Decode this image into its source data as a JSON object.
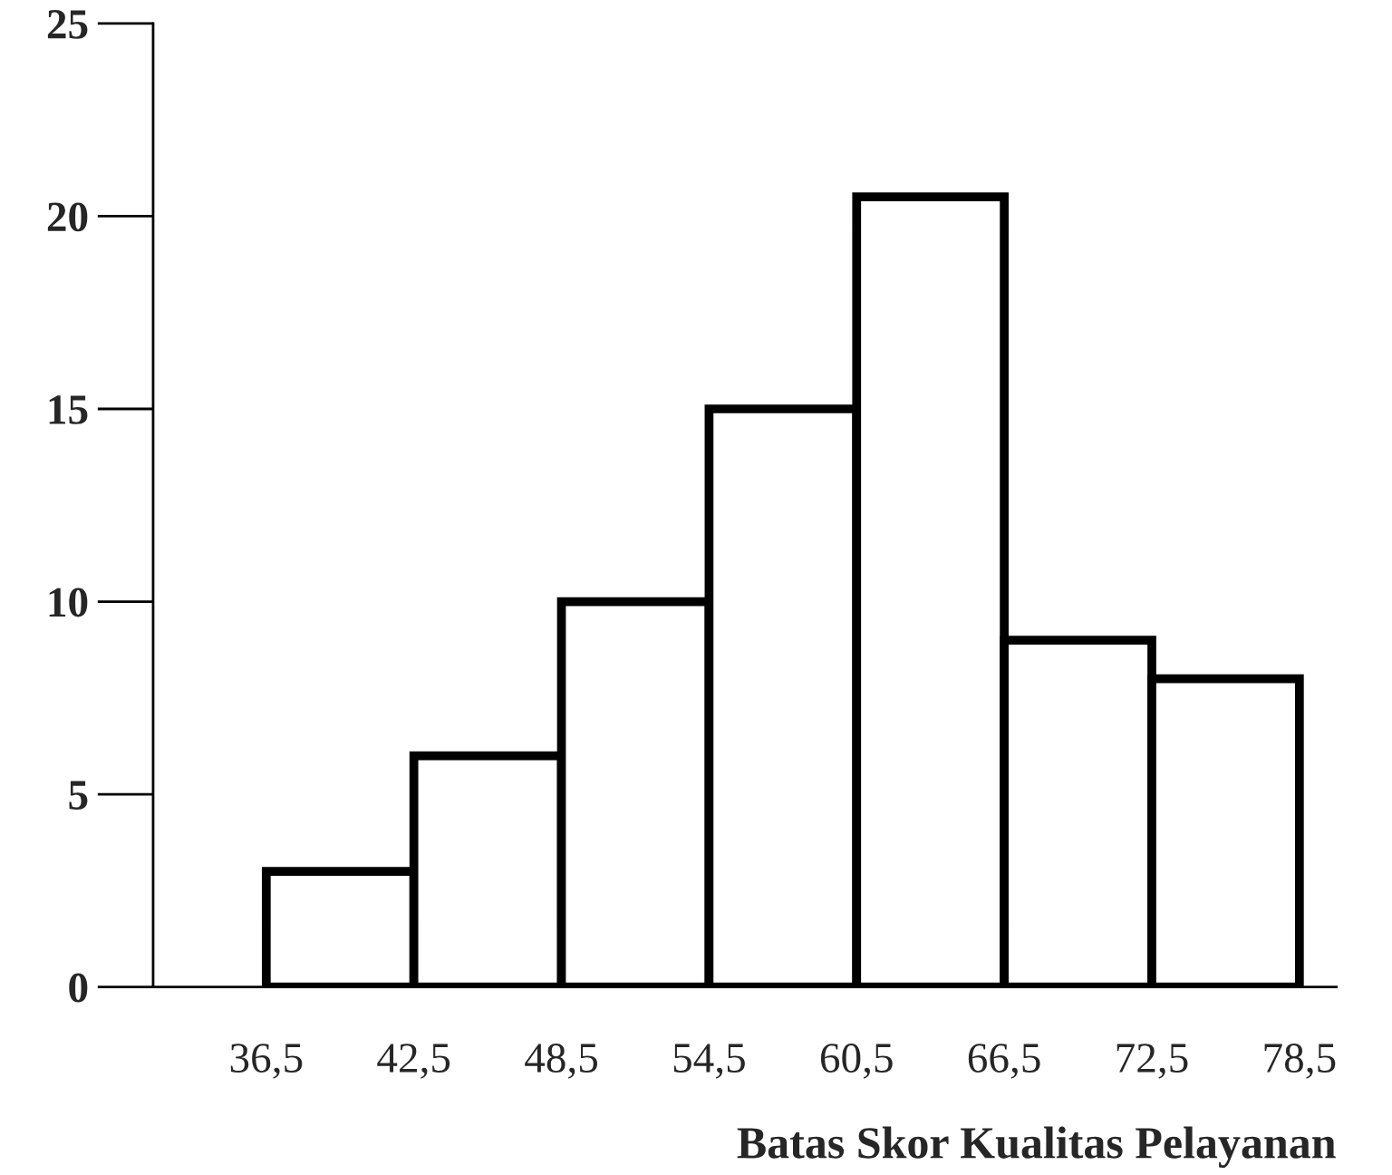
{
  "chart_data": {
    "type": "histogram",
    "xlabel": "Batas Skor Kualitas Pelayanan",
    "bins": [
      36.5,
      42.5,
      48.5,
      54.5,
      60.5,
      66.5,
      72.5,
      78.5
    ],
    "values": [
      3,
      6,
      10,
      15,
      20.5,
      9,
      8
    ],
    "color": "#ffffff",
    "xlim": [
      31.9,
      80
    ],
    "xticks": [
      {
        "value": 36.5,
        "label": "36,5"
      },
      {
        "value": 42.5,
        "label": "42,5"
      },
      {
        "value": 48.5,
        "label": "48,5"
      },
      {
        "value": 54.5,
        "label": "54,5"
      },
      {
        "value": 60.5,
        "label": "60,5"
      },
      {
        "value": 66.5,
        "label": "66,5"
      },
      {
        "value": 72.5,
        "label": "72,5"
      },
      {
        "value": 78.5,
        "label": "78,5"
      }
    ],
    "ylim": [
      0,
      25
    ],
    "yticks": [
      0,
      5,
      10,
      15,
      20,
      25
    ],
    "grid": false
  }
}
